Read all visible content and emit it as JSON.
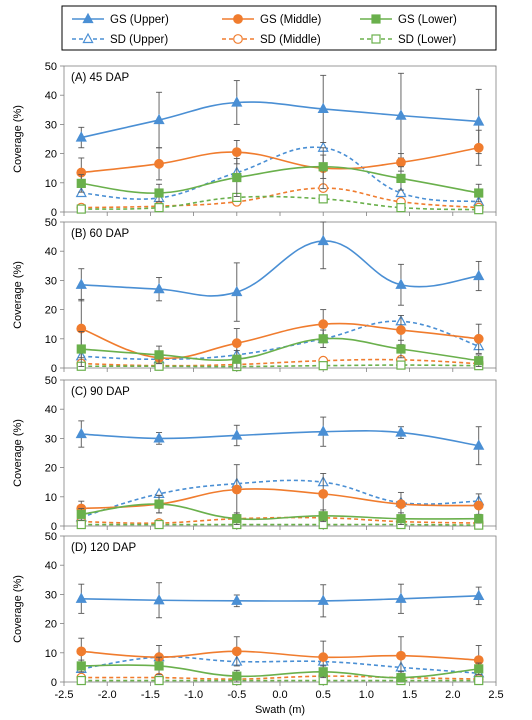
{
  "chart_data": {
    "type": "line",
    "xlabel": "Swath (m)",
    "ylabel": "Coverage (%)",
    "xlim": [
      -2.5,
      2.5
    ],
    "x_ticks": [
      "-2.5",
      "-2.0",
      "-1.5",
      "-1.0",
      "-0.5",
      "0.0",
      "0.5",
      "1.0",
      "1.5",
      "2.0",
      "2.5"
    ],
    "ylim": [
      0,
      50
    ],
    "y_ticks": [
      "0",
      "10",
      "20",
      "30",
      "40",
      "50"
    ],
    "x": [
      -2.3,
      -1.4,
      -0.5,
      0.5,
      1.4,
      2.3
    ],
    "legend": [
      {
        "name": "GS (Upper)",
        "color": "#4a8fd4",
        "marker": "triangle",
        "filled": true,
        "dashed": false
      },
      {
        "name": "GS (Middle)",
        "color": "#f07c2e",
        "marker": "circle",
        "filled": true,
        "dashed": false
      },
      {
        "name": "GS (Lower)",
        "color": "#6ab04c",
        "marker": "square",
        "filled": true,
        "dashed": false
      },
      {
        "name": "SD (Upper)",
        "color": "#4a8fd4",
        "marker": "triangle",
        "filled": false,
        "dashed": true
      },
      {
        "name": "SD (Middle)",
        "color": "#f07c2e",
        "marker": "circle",
        "filled": false,
        "dashed": true
      },
      {
        "name": "SD (Lower)",
        "color": "#6ab04c",
        "marker": "square",
        "filled": false,
        "dashed": true
      }
    ],
    "panels": [
      {
        "label": "(A) 45 DAP",
        "series": [
          {
            "name": "GS (Upper)",
            "values": [
              25.5,
              31.5,
              37.5,
              35.3,
              33,
              31
            ],
            "err": [
              3.5,
              9.5,
              7.5,
              11.5,
              14.5,
              11
            ]
          },
          {
            "name": "GS (Middle)",
            "values": [
              13.5,
              16.5,
              20.5,
              15,
              17,
              22
            ],
            "err": [
              5,
              5.5,
              4,
              7,
              3,
              6
            ]
          },
          {
            "name": "GS (Lower)",
            "values": [
              9.8,
              6.5,
              11.8,
              15.5,
              11.5,
              6.5
            ],
            "err": [
              3,
              3,
              6.5,
              4,
              4,
              3
            ]
          },
          {
            "name": "SD (Upper)",
            "values": [
              6.5,
              4.8,
              13.5,
              22,
              6.5,
              3.5
            ],
            "err": [
              0,
              0,
              0,
              0,
              0,
              0
            ]
          },
          {
            "name": "SD (Middle)",
            "values": [
              1.5,
              2,
              3.5,
              8.2,
              3.5,
              1.5
            ],
            "err": [
              0,
              0,
              0,
              0,
              0,
              0
            ]
          },
          {
            "name": "SD (Lower)",
            "values": [
              1,
              1.5,
              5,
              4.5,
              1.5,
              0.8
            ],
            "err": [
              0,
              0,
              0,
              0,
              0,
              0
            ]
          }
        ]
      },
      {
        "label": "(B) 60 DAP",
        "series": [
          {
            "name": "GS (Upper)",
            "values": [
              28.5,
              27,
              26,
              43.5,
              28.5,
              31.5
            ],
            "err": [
              5.5,
              4,
              10,
              9.5,
              7,
              5
            ]
          },
          {
            "name": "GS (Middle)",
            "values": [
              13.5,
              3.5,
              8.5,
              15,
              13,
              10
            ],
            "err": [
              10,
              2,
              5,
              5,
              5,
              5
            ]
          },
          {
            "name": "GS (Lower)",
            "values": [
              6.5,
              4.5,
              3,
              10,
              6.5,
              2.5
            ],
            "err": [
              6,
              3,
              3,
              3,
              3,
              2
            ]
          },
          {
            "name": "SD (Upper)",
            "values": [
              4,
              3,
              4.5,
              10,
              16,
              7.5
            ],
            "err": [
              0,
              0,
              0,
              0,
              0,
              0
            ]
          },
          {
            "name": "SD (Middle)",
            "values": [
              1.5,
              0.8,
              1.2,
              2.5,
              2.8,
              1.5
            ],
            "err": [
              0,
              0,
              0,
              0,
              0,
              0
            ]
          },
          {
            "name": "SD (Lower)",
            "values": [
              0.6,
              0.6,
              0.5,
              0.8,
              1,
              0.8
            ],
            "err": [
              0,
              0,
              0,
              0,
              0,
              0
            ]
          }
        ]
      },
      {
        "label": "(C) 90 DAP",
        "series": [
          {
            "name": "GS (Upper)",
            "values": [
              31.5,
              30,
              31,
              32.3,
              32,
              27.5
            ],
            "err": [
              4.5,
              2,
              3.5,
              5,
              2,
              6.5
            ]
          },
          {
            "name": "GS (Middle)",
            "values": [
              6,
              7.5,
              12.5,
              11,
              7.5,
              7
            ],
            "err": [
              2.5,
              3,
              8.5,
              7,
              4,
              4
            ]
          },
          {
            "name": "GS (Lower)",
            "values": [
              4,
              7.5,
              2.5,
              3.5,
              2.5,
              2.5
            ],
            "err": [
              2,
              3,
              2,
              2,
              2,
              1.5
            ]
          },
          {
            "name": "SD (Upper)",
            "values": [
              3,
              11,
              14.5,
              15,
              8,
              8.5
            ],
            "err": [
              0,
              0,
              0,
              0,
              0,
              0
            ]
          },
          {
            "name": "SD (Middle)",
            "values": [
              1.5,
              1,
              2.5,
              2.8,
              1.5,
              1
            ],
            "err": [
              0,
              0,
              0,
              0,
              0,
              0
            ]
          },
          {
            "name": "SD (Lower)",
            "values": [
              0.5,
              0.5,
              0.5,
              0.5,
              0.5,
              0.3
            ],
            "err": [
              0,
              0,
              0,
              0,
              0,
              0
            ]
          }
        ]
      },
      {
        "label": "(D) 120 DAP",
        "series": [
          {
            "name": "GS (Upper)",
            "values": [
              28.5,
              28,
              27.8,
              27.8,
              28.5,
              29.5
            ],
            "err": [
              5,
              6,
              2,
              5.5,
              5,
              3
            ]
          },
          {
            "name": "GS (Middle)",
            "values": [
              10.5,
              8.5,
              10.5,
              8.5,
              9,
              7.5
            ],
            "err": [
              4.5,
              4,
              5,
              5.5,
              6.5,
              5
            ]
          },
          {
            "name": "GS (Lower)",
            "values": [
              5.5,
              5.5,
              2,
              3.5,
              1.5,
              4.5
            ],
            "err": [
              2,
              3,
              2,
              2,
              2,
              2
            ]
          },
          {
            "name": "SD (Upper)",
            "values": [
              4.5,
              8.5,
              7,
              7,
              5,
              3
            ],
            "err": [
              0,
              0,
              0,
              0,
              0,
              0
            ]
          },
          {
            "name": "SD (Middle)",
            "values": [
              1.5,
              1.5,
              1,
              2,
              1.5,
              1
            ],
            "err": [
              0,
              0,
              0,
              0,
              0,
              0
            ]
          },
          {
            "name": "SD (Lower)",
            "values": [
              0.5,
              0.5,
              0.5,
              0.5,
              0.5,
              0.5
            ],
            "err": [
              0,
              0,
              0,
              0,
              0,
              0
            ]
          }
        ]
      }
    ]
  }
}
